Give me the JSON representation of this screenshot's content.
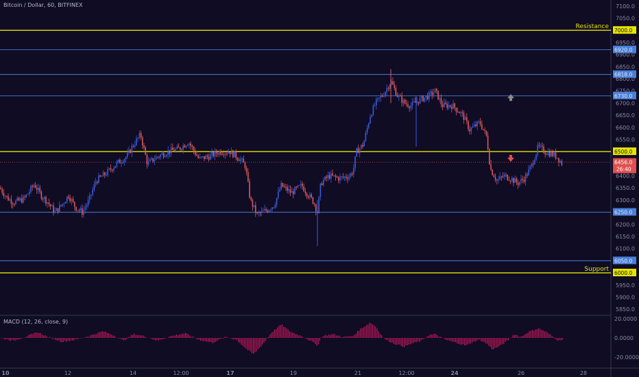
{
  "header": {
    "title": "Bitcoin / Dollar, 60, BITFINEX"
  },
  "macd": {
    "label": "MACD (12, 26, close, 9)",
    "ticks": [
      "20.0000",
      "0.0000",
      "-20.0000"
    ],
    "tick_values": [
      20,
      0,
      -20
    ]
  },
  "colors": {
    "background": "#0f0c24",
    "bull": "#3b5bdb",
    "bear": "#e05a5a",
    "yellow_line": "#e6e600",
    "blue_line": "#4a7fd6",
    "macd_hist": "#c2185b",
    "axis_text": "#8a8aa0",
    "current_badge": "#e05050"
  },
  "chart_data": {
    "type": "candlestick",
    "title": "Bitcoin / Dollar, 60, BITFINEX",
    "ylim": [
      5825,
      7125
    ],
    "y_ticks": [
      5850,
      5900,
      5950,
      6000,
      6050,
      6100,
      6150,
      6200,
      6250,
      6300,
      6350,
      6400,
      6450,
      6500,
      6550,
      6600,
      6650,
      6700,
      6750,
      6800,
      6850,
      6900,
      6950,
      7000,
      7050,
      7100
    ],
    "y_tick_labels": [
      "5850.0",
      "5900.0",
      "5950.0",
      "6000.0",
      "6050.0",
      "6100.0",
      "6150.0",
      "6200.0",
      "6250.0",
      "6300.0",
      "6350.0",
      "6400.0",
      "6450.0",
      "6500.0",
      "6550.0",
      "6600.0",
      "6650.0",
      "6700.0",
      "6750.0",
      "6800.0",
      "6850.0",
      "6900.0",
      "6950.0",
      "7000.0",
      "7050.0",
      "7100.0"
    ],
    "x_labels": [
      "10",
      "12",
      "14",
      "12:00",
      "17",
      "19",
      "21",
      "12:00",
      "24",
      "26",
      "28"
    ],
    "horizontal_lines": [
      {
        "price": 7000,
        "label": "7000.0",
        "text": "Resistance",
        "kind": "yellow"
      },
      {
        "price": 6920,
        "label": "6920.0",
        "text": "",
        "kind": "blue"
      },
      {
        "price": 6818,
        "label": "6818.0",
        "text": "",
        "kind": "blue"
      },
      {
        "price": 6730,
        "label": "6730.0",
        "text": "",
        "kind": "blue"
      },
      {
        "price": 6500,
        "label": "6500.0",
        "text": "",
        "kind": "yellow"
      },
      {
        "price": 6250,
        "label": "6250.0",
        "text": "",
        "kind": "blue"
      },
      {
        "price": 6050,
        "label": "6050.0",
        "text": "",
        "kind": "blue"
      },
      {
        "price": 6000,
        "label": "6000.0",
        "text": "Support",
        "kind": "yellow"
      }
    ],
    "current_price": {
      "value": 6456,
      "label": "6456.0",
      "countdown": "26:40"
    },
    "markers": [
      {
        "kind": "up-arrow",
        "price": 6720
      },
      {
        "kind": "down-arrow",
        "price": 6475
      }
    ],
    "path_points": [
      [
        0,
        6350
      ],
      [
        10,
        6310
      ],
      [
        20,
        6290
      ],
      [
        35,
        6305
      ],
      [
        50,
        6365
      ],
      [
        60,
        6320
      ],
      [
        70,
        6290
      ],
      [
        80,
        6250
      ],
      [
        90,
        6280
      ],
      [
        100,
        6320
      ],
      [
        110,
        6270
      ],
      [
        120,
        6250
      ],
      [
        130,
        6300
      ],
      [
        140,
        6380
      ],
      [
        155,
        6410
      ],
      [
        170,
        6450
      ],
      [
        185,
        6480
      ],
      [
        195,
        6530
      ],
      [
        205,
        6570
      ],
      [
        215,
        6450
      ],
      [
        230,
        6480
      ],
      [
        245,
        6500
      ],
      [
        260,
        6510
      ],
      [
        275,
        6540
      ],
      [
        290,
        6470
      ],
      [
        305,
        6480
      ],
      [
        320,
        6500
      ],
      [
        335,
        6500
      ],
      [
        350,
        6470
      ],
      [
        358,
        6440
      ],
      [
        365,
        6300
      ],
      [
        375,
        6240
      ],
      [
        390,
        6260
      ],
      [
        400,
        6280
      ],
      [
        410,
        6360
      ],
      [
        425,
        6330
      ],
      [
        440,
        6360
      ],
      [
        450,
        6320
      ],
      [
        458,
        6290
      ],
      [
        463,
        6250
      ],
      [
        468,
        6370
      ],
      [
        480,
        6400
      ],
      [
        495,
        6390
      ],
      [
        510,
        6400
      ],
      [
        515,
        6420
      ],
      [
        520,
        6500
      ],
      [
        530,
        6530
      ],
      [
        540,
        6650
      ],
      [
        548,
        6700
      ],
      [
        560,
        6740
      ],
      [
        570,
        6790
      ],
      [
        580,
        6730
      ],
      [
        590,
        6700
      ],
      [
        600,
        6690
      ],
      [
        610,
        6710
      ],
      [
        625,
        6730
      ],
      [
        635,
        6750
      ],
      [
        645,
        6690
      ],
      [
        660,
        6690
      ],
      [
        675,
        6650
      ],
      [
        685,
        6590
      ],
      [
        700,
        6620
      ],
      [
        710,
        6560
      ],
      [
        715,
        6430
      ],
      [
        725,
        6380
      ],
      [
        735,
        6400
      ],
      [
        745,
        6390
      ],
      [
        755,
        6370
      ],
      [
        765,
        6390
      ],
      [
        775,
        6440
      ],
      [
        785,
        6520
      ],
      [
        795,
        6500
      ],
      [
        805,
        6490
      ],
      [
        812,
        6480
      ],
      [
        820,
        6450
      ]
    ],
    "macd_points": [
      [
        0,
        0
      ],
      [
        20,
        -3
      ],
      [
        40,
        2
      ],
      [
        55,
        6
      ],
      [
        70,
        1
      ],
      [
        90,
        -4
      ],
      [
        110,
        -2
      ],
      [
        130,
        2
      ],
      [
        150,
        7
      ],
      [
        165,
        3
      ],
      [
        180,
        -3
      ],
      [
        195,
        4
      ],
      [
        210,
        2
      ],
      [
        230,
        -3
      ],
      [
        250,
        2
      ],
      [
        270,
        5
      ],
      [
        290,
        -2
      ],
      [
        310,
        -5
      ],
      [
        330,
        1
      ],
      [
        345,
        -2
      ],
      [
        360,
        -12
      ],
      [
        370,
        -17
      ],
      [
        385,
        -5
      ],
      [
        395,
        5
      ],
      [
        410,
        14
      ],
      [
        425,
        6
      ],
      [
        440,
        2
      ],
      [
        455,
        -4
      ],
      [
        463,
        -8
      ],
      [
        470,
        2
      ],
      [
        485,
        4
      ],
      [
        500,
        1
      ],
      [
        515,
        2
      ],
      [
        525,
        9
      ],
      [
        540,
        16
      ],
      [
        548,
        12
      ],
      [
        560,
        -1
      ],
      [
        575,
        -6
      ],
      [
        590,
        -9
      ],
      [
        600,
        -6
      ],
      [
        615,
        -3
      ],
      [
        625,
        3
      ],
      [
        635,
        4
      ],
      [
        650,
        -2
      ],
      [
        665,
        -5
      ],
      [
        680,
        -8
      ],
      [
        690,
        -4
      ],
      [
        700,
        -2
      ],
      [
        710,
        -6
      ],
      [
        718,
        -12
      ],
      [
        728,
        -9
      ],
      [
        740,
        -3
      ],
      [
        750,
        4
      ],
      [
        760,
        1
      ],
      [
        770,
        6
      ],
      [
        785,
        10
      ],
      [
        795,
        7
      ],
      [
        805,
        2
      ],
      [
        815,
        -3
      ],
      [
        822,
        -1
      ]
    ]
  }
}
